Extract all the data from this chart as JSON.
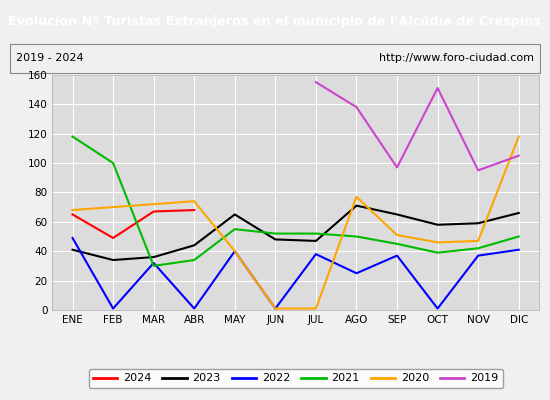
{
  "title": "Evolucion Nº Turistas Extranjeros en el municipio de l'Alcúdia de Crespins",
  "subtitle_left": "2019 - 2024",
  "subtitle_right": "http://www.foro-ciudad.com",
  "months": [
    "ENE",
    "FEB",
    "MAR",
    "ABR",
    "MAY",
    "JUN",
    "JUL",
    "AGO",
    "SEP",
    "OCT",
    "NOV",
    "DIC"
  ],
  "series": {
    "2024": [
      65,
      49,
      67,
      68,
      null,
      null,
      null,
      null,
      null,
      null,
      null,
      null
    ],
    "2023": [
      41,
      34,
      36,
      44,
      65,
      48,
      47,
      71,
      65,
      58,
      59,
      66
    ],
    "2022": [
      49,
      1,
      32,
      1,
      40,
      1,
      38,
      25,
      37,
      1,
      37,
      41
    ],
    "2021": [
      118,
      100,
      30,
      34,
      55,
      52,
      52,
      50,
      45,
      39,
      42,
      50
    ],
    "2020": [
      68,
      70,
      72,
      74,
      40,
      1,
      1,
      77,
      51,
      46,
      47,
      118
    ],
    "2019": [
      null,
      null,
      null,
      null,
      null,
      null,
      155,
      138,
      97,
      151,
      95,
      105
    ]
  },
  "colors": {
    "2024": "#ff0000",
    "2023": "#000000",
    "2022": "#0000ff",
    "2021": "#00bb00",
    "2020": "#ffa500",
    "2019": "#cc44cc"
  },
  "ylim": [
    0,
    160
  ],
  "yticks": [
    0,
    20,
    40,
    60,
    80,
    100,
    120,
    140,
    160
  ],
  "title_bg": "#4472c4",
  "title_color": "#ffffff",
  "plot_bg": "#dcdcdc",
  "grid_color": "#ffffff",
  "fig_bg": "#f0f0f0",
  "subtitle_bg": "#f0f0f0"
}
